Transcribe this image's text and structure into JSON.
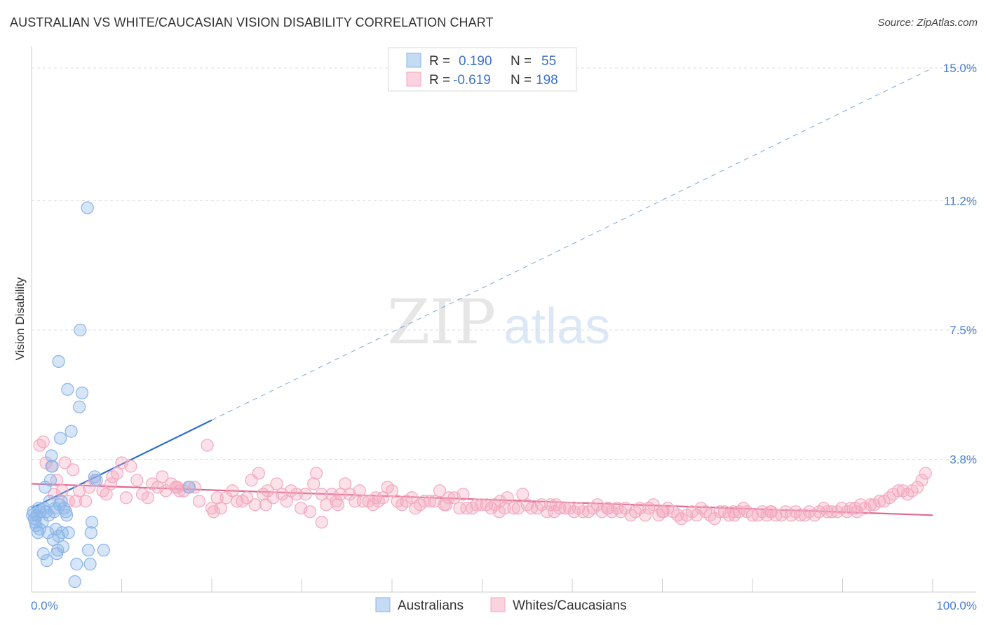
{
  "title": "AUSTRALIAN VS WHITE/CAUCASIAN VISION DISABILITY CORRELATION CHART",
  "source": "Source: ZipAtlas.com",
  "watermark": {
    "zip": "ZIP",
    "atlas": "atlas"
  },
  "chart_data": {
    "type": "scatter",
    "xlabel": "",
    "ylabel": "Vision Disability",
    "xlim": [
      0,
      100
    ],
    "ylim": [
      0,
      15
    ],
    "x_tick_labels": [
      "0.0%",
      "100.0%"
    ],
    "y_ticks": [
      3.8,
      7.5,
      11.2,
      15.0
    ],
    "y_tick_labels": [
      "3.8%",
      "7.5%",
      "11.2%",
      "15.0%"
    ],
    "legend": {
      "position": "top-center",
      "entries": [
        {
          "r_label": "R =",
          "r_value": "0.190",
          "n_label": "N =",
          "n_value": "55"
        },
        {
          "r_label": "R =",
          "r_value": "-0.619",
          "n_label": "N =",
          "n_value": "198"
        }
      ]
    },
    "series": [
      {
        "name": "Australians",
        "color": "#8ab4e8",
        "trend_color": "#3070c8",
        "trend": {
          "x0": 0,
          "y0": 2.4,
          "x1": 100,
          "y1": 15.0,
          "solid_until_x": 20
        },
        "points": [
          [
            0.2,
            2.3
          ],
          [
            0.3,
            2.1
          ],
          [
            0.4,
            2.0
          ],
          [
            0.5,
            1.9
          ],
          [
            0.6,
            2.2
          ],
          [
            0.7,
            1.7
          ],
          [
            0.8,
            2.4
          ],
          [
            0.9,
            1.8
          ],
          [
            1.0,
            2.3
          ],
          [
            1.2,
            2.0
          ],
          [
            1.3,
            1.1
          ],
          [
            1.4,
            2.4
          ],
          [
            1.5,
            3.0
          ],
          [
            1.6,
            2.3
          ],
          [
            1.7,
            0.9
          ],
          [
            1.8,
            1.7
          ],
          [
            2.0,
            2.6
          ],
          [
            2.1,
            3.2
          ],
          [
            2.2,
            3.9
          ],
          [
            2.3,
            3.6
          ],
          [
            2.4,
            1.5
          ],
          [
            2.5,
            2.3
          ],
          [
            2.6,
            2.4
          ],
          [
            2.7,
            1.8
          ],
          [
            2.8,
            1.1
          ],
          [
            2.9,
            1.2
          ],
          [
            3.0,
            1.6
          ],
          [
            3.1,
            2.5
          ],
          [
            3.2,
            4.4
          ],
          [
            3.3,
            2.6
          ],
          [
            3.4,
            1.7
          ],
          [
            3.5,
            1.3
          ],
          [
            3.6,
            2.4
          ],
          [
            3.8,
            2.3
          ],
          [
            3.9,
            2.2
          ],
          [
            4.0,
            5.8
          ],
          [
            4.1,
            1.7
          ],
          [
            4.4,
            4.6
          ],
          [
            4.8,
            0.3
          ],
          [
            5.0,
            0.8
          ],
          [
            5.3,
            5.3
          ],
          [
            5.4,
            7.5
          ],
          [
            5.6,
            5.7
          ],
          [
            6.2,
            11.0
          ],
          [
            6.3,
            1.2
          ],
          [
            6.5,
            0.8
          ],
          [
            6.6,
            1.7
          ],
          [
            6.7,
            2.0
          ],
          [
            7.0,
            3.3
          ],
          [
            8.0,
            1.2
          ],
          [
            3.0,
            6.6
          ],
          [
            1.9,
            2.2
          ],
          [
            0.1,
            2.2
          ],
          [
            17.5,
            3.0
          ],
          [
            7.2,
            3.2
          ]
        ]
      },
      {
        "name": "Whites/Caucasians",
        "color": "#f4a8bf",
        "trend_color": "#e06890",
        "trend": {
          "x0": 0,
          "y0": 3.1,
          "x1": 100,
          "y1": 2.2
        },
        "points": [
          [
            0.9,
            4.2
          ],
          [
            1.3,
            4.3
          ],
          [
            1.6,
            3.7
          ],
          [
            2.2,
            3.6
          ],
          [
            2.5,
            2.8
          ],
          [
            2.8,
            3.2
          ],
          [
            3.4,
            2.9
          ],
          [
            3.7,
            3.7
          ],
          [
            4.1,
            2.6
          ],
          [
            4.6,
            3.5
          ],
          [
            4.9,
            2.6
          ],
          [
            5.3,
            2.9
          ],
          [
            6.0,
            2.6
          ],
          [
            6.4,
            3.0
          ],
          [
            7.0,
            3.2
          ],
          [
            7.9,
            2.9
          ],
          [
            8.3,
            2.8
          ],
          [
            8.8,
            3.1
          ],
          [
            9.5,
            3.4
          ],
          [
            10.0,
            3.7
          ],
          [
            10.5,
            2.7
          ],
          [
            11.0,
            3.6
          ],
          [
            11.7,
            3.2
          ],
          [
            12.3,
            2.8
          ],
          [
            12.9,
            2.7
          ],
          [
            13.4,
            3.1
          ],
          [
            14.0,
            3.0
          ],
          [
            14.5,
            3.3
          ],
          [
            14.9,
            2.9
          ],
          [
            15.5,
            3.1
          ],
          [
            16.0,
            3.0
          ],
          [
            16.4,
            2.9
          ],
          [
            16.9,
            2.9
          ],
          [
            17.4,
            3.0
          ],
          [
            18.1,
            3.0
          ],
          [
            18.6,
            2.6
          ],
          [
            19.5,
            4.2
          ],
          [
            20.2,
            2.3
          ],
          [
            20.6,
            2.7
          ],
          [
            21.0,
            2.4
          ],
          [
            21.6,
            2.7
          ],
          [
            22.3,
            2.9
          ],
          [
            22.8,
            2.6
          ],
          [
            23.4,
            2.6
          ],
          [
            23.9,
            2.7
          ],
          [
            24.4,
            3.2
          ],
          [
            24.8,
            2.5
          ],
          [
            25.2,
            3.4
          ],
          [
            25.7,
            2.8
          ],
          [
            26.2,
            2.9
          ],
          [
            26.8,
            2.7
          ],
          [
            27.2,
            3.1
          ],
          [
            27.8,
            2.8
          ],
          [
            28.3,
            2.6
          ],
          [
            28.8,
            2.9
          ],
          [
            29.4,
            2.8
          ],
          [
            29.9,
            2.4
          ],
          [
            30.4,
            2.8
          ],
          [
            30.9,
            2.3
          ],
          [
            31.3,
            3.1
          ],
          [
            31.6,
            3.4
          ],
          [
            32.2,
            2.8
          ],
          [
            32.7,
            2.5
          ],
          [
            32.2,
            2.0
          ],
          [
            33.3,
            2.8
          ],
          [
            33.8,
            2.6
          ],
          [
            34.3,
            2.8
          ],
          [
            34.8,
            3.1
          ],
          [
            35.3,
            2.8
          ],
          [
            35.9,
            2.6
          ],
          [
            36.4,
            2.9
          ],
          [
            36.8,
            2.6
          ],
          [
            37.4,
            2.6
          ],
          [
            37.9,
            2.5
          ],
          [
            38.5,
            2.6
          ],
          [
            39.0,
            2.7
          ],
          [
            39.5,
            3.0
          ],
          [
            40.0,
            2.9
          ],
          [
            40.6,
            2.6
          ],
          [
            41.1,
            2.5
          ],
          [
            41.6,
            2.6
          ],
          [
            42.2,
            2.7
          ],
          [
            42.6,
            2.4
          ],
          [
            43.1,
            2.5
          ],
          [
            43.6,
            2.6
          ],
          [
            44.2,
            2.6
          ],
          [
            44.7,
            2.6
          ],
          [
            45.3,
            2.9
          ],
          [
            45.8,
            2.5
          ],
          [
            46.3,
            2.7
          ],
          [
            46.9,
            2.7
          ],
          [
            47.5,
            2.4
          ],
          [
            47.9,
            2.8
          ],
          [
            48.3,
            2.4
          ],
          [
            48.9,
            2.4
          ],
          [
            49.4,
            2.5
          ],
          [
            49.9,
            2.5
          ],
          [
            50.5,
            2.5
          ],
          [
            51.0,
            2.4
          ],
          [
            51.4,
            2.5
          ],
          [
            51.9,
            2.3
          ],
          [
            52.5,
            2.4
          ],
          [
            52.8,
            2.7
          ],
          [
            53.5,
            2.4
          ],
          [
            54.0,
            2.4
          ],
          [
            54.5,
            2.8
          ],
          [
            55.0,
            2.5
          ],
          [
            55.5,
            2.4
          ],
          [
            56.1,
            2.4
          ],
          [
            56.6,
            2.5
          ],
          [
            57.2,
            2.3
          ],
          [
            57.6,
            2.5
          ],
          [
            58.2,
            2.5
          ],
          [
            58.6,
            2.4
          ],
          [
            59.2,
            2.4
          ],
          [
            59.7,
            2.4
          ],
          [
            60.2,
            2.3
          ],
          [
            60.7,
            2.4
          ],
          [
            61.2,
            2.3
          ],
          [
            61.8,
            2.3
          ],
          [
            62.3,
            2.4
          ],
          [
            62.8,
            2.5
          ],
          [
            63.3,
            2.3
          ],
          [
            63.9,
            2.4
          ],
          [
            64.4,
            2.3
          ],
          [
            65.0,
            2.4
          ],
          [
            65.4,
            2.3
          ],
          [
            65.9,
            2.4
          ],
          [
            66.5,
            2.2
          ],
          [
            67.0,
            2.3
          ],
          [
            67.5,
            2.4
          ],
          [
            68.1,
            2.2
          ],
          [
            68.5,
            2.4
          ],
          [
            69.0,
            2.5
          ],
          [
            69.6,
            2.2
          ],
          [
            70.1,
            2.3
          ],
          [
            70.6,
            2.4
          ],
          [
            71.2,
            2.3
          ],
          [
            71.7,
            2.2
          ],
          [
            72.1,
            2.1
          ],
          [
            72.7,
            2.2
          ],
          [
            73.3,
            2.3
          ],
          [
            73.8,
            2.2
          ],
          [
            74.3,
            2.4
          ],
          [
            74.8,
            2.3
          ],
          [
            75.3,
            2.2
          ],
          [
            75.8,
            2.1
          ],
          [
            76.4,
            2.3
          ],
          [
            76.9,
            2.3
          ],
          [
            77.4,
            2.2
          ],
          [
            77.9,
            2.3
          ],
          [
            78.5,
            2.3
          ],
          [
            79.0,
            2.4
          ],
          [
            79.4,
            2.3
          ],
          [
            80.0,
            2.2
          ],
          [
            80.6,
            2.2
          ],
          [
            81.1,
            2.3
          ],
          [
            81.6,
            2.2
          ],
          [
            82.1,
            2.3
          ],
          [
            82.6,
            2.2
          ],
          [
            83.2,
            2.2
          ],
          [
            83.7,
            2.3
          ],
          [
            84.3,
            2.2
          ],
          [
            84.8,
            2.3
          ],
          [
            85.3,
            2.2
          ],
          [
            85.8,
            2.2
          ],
          [
            86.3,
            2.3
          ],
          [
            86.9,
            2.2
          ],
          [
            87.4,
            2.3
          ],
          [
            87.9,
            2.4
          ],
          [
            88.3,
            2.3
          ],
          [
            88.8,
            2.3
          ],
          [
            89.4,
            2.3
          ],
          [
            89.9,
            2.4
          ],
          [
            90.5,
            2.3
          ],
          [
            90.9,
            2.4
          ],
          [
            91.4,
            2.4
          ],
          [
            92.0,
            2.5
          ],
          [
            92.5,
            2.4
          ],
          [
            93.1,
            2.5
          ],
          [
            93.5,
            2.5
          ],
          [
            94.1,
            2.6
          ],
          [
            94.6,
            2.6
          ],
          [
            95.2,
            2.7
          ],
          [
            95.6,
            2.8
          ],
          [
            96.2,
            2.9
          ],
          [
            96.7,
            2.9
          ],
          [
            97.2,
            2.8
          ],
          [
            97.7,
            2.9
          ],
          [
            98.3,
            3.0
          ],
          [
            98.8,
            3.2
          ],
          [
            99.2,
            3.4
          ],
          [
            91.6,
            2.3
          ],
          [
            78.0,
            2.2
          ],
          [
            64.0,
            2.4
          ],
          [
            52.0,
            2.6
          ],
          [
            38.2,
            2.7
          ],
          [
            26.0,
            2.5
          ],
          [
            16.2,
            3.0
          ],
          [
            9.0,
            3.3
          ],
          [
            20.0,
            2.4
          ],
          [
            34.0,
            2.5
          ],
          [
            46.0,
            2.5
          ],
          [
            58.0,
            2.3
          ],
          [
            70.0,
            2.3
          ],
          [
            82.0,
            2.3
          ]
        ]
      }
    ]
  }
}
